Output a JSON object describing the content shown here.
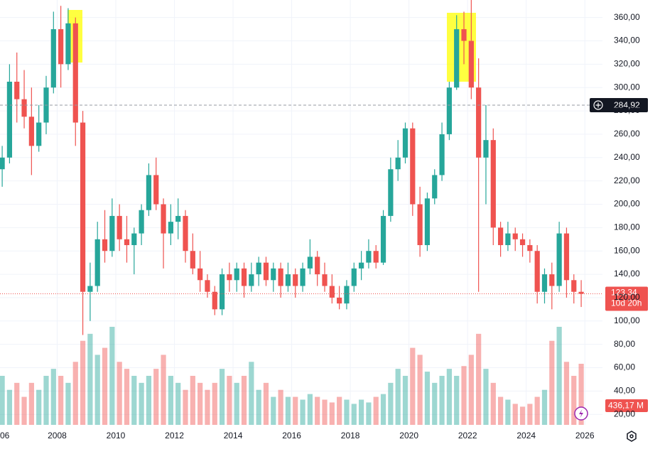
{
  "chart_data": {
    "type": "candlestick",
    "x": [
      2006.125,
      2006.375,
      2006.625,
      2006.875,
      2007.125,
      2007.375,
      2007.625,
      2007.875,
      2008.125,
      2008.375,
      2008.625,
      2008.875,
      2009.125,
      2009.375,
      2009.625,
      2009.875,
      2010.125,
      2010.375,
      2010.625,
      2010.875,
      2011.125,
      2011.375,
      2011.625,
      2011.875,
      2012.125,
      2012.375,
      2012.625,
      2012.875,
      2013.125,
      2013.375,
      2013.625,
      2013.875,
      2014.125,
      2014.375,
      2014.625,
      2014.875,
      2015.125,
      2015.375,
      2015.625,
      2015.875,
      2016.125,
      2016.375,
      2016.625,
      2016.875,
      2017.125,
      2017.375,
      2017.625,
      2017.875,
      2018.125,
      2018.375,
      2018.625,
      2018.875,
      2019.125,
      2019.375,
      2019.625,
      2019.875,
      2020.125,
      2020.375,
      2020.625,
      2020.875,
      2021.125,
      2021.375,
      2021.625,
      2021.875,
      2022.125,
      2022.375,
      2022.625,
      2022.875,
      2023.125,
      2023.375,
      2023.625,
      2023.875,
      2024.125,
      2024.375,
      2024.625,
      2024.875,
      2025.125,
      2025.375,
      2025.625,
      2025.875
    ],
    "open": [
      230,
      240,
      305,
      290,
      275,
      250,
      270,
      300,
      350,
      320,
      355,
      270,
      125,
      130,
      170,
      160,
      190,
      170,
      165,
      175,
      195,
      225,
      200,
      175,
      185,
      190,
      160,
      145,
      135,
      125,
      110,
      140,
      135,
      145,
      130,
      140,
      150,
      135,
      145,
      130,
      140,
      130,
      145,
      155,
      140,
      130,
      120,
      115,
      130,
      145,
      150,
      160,
      150,
      190,
      230,
      240,
      265,
      200,
      165,
      205,
      225,
      260,
      300,
      350,
      340,
      300,
      240,
      255,
      180,
      165,
      175,
      170,
      165,
      160,
      125,
      140,
      130,
      175,
      135,
      125
    ],
    "high": [
      250,
      320,
      330,
      315,
      300,
      285,
      310,
      365,
      370,
      368,
      360,
      280,
      150,
      185,
      195,
      205,
      200,
      190,
      180,
      200,
      235,
      240,
      205,
      200,
      205,
      195,
      175,
      160,
      140,
      130,
      145,
      150,
      150,
      150,
      150,
      155,
      155,
      150,
      150,
      150,
      145,
      150,
      170,
      160,
      150,
      140,
      130,
      135,
      150,
      160,
      170,
      165,
      195,
      240,
      255,
      270,
      270,
      215,
      210,
      230,
      270,
      305,
      362,
      365,
      375,
      325,
      285,
      265,
      185,
      185,
      180,
      175,
      170,
      165,
      145,
      150,
      185,
      180,
      140,
      135
    ],
    "low": [
      215,
      235,
      270,
      265,
      225,
      245,
      260,
      295,
      300,
      315,
      250,
      88,
      100,
      125,
      150,
      155,
      160,
      150,
      140,
      165,
      190,
      195,
      145,
      165,
      170,
      150,
      140,
      125,
      120,
      105,
      105,
      125,
      125,
      120,
      125,
      130,
      130,
      125,
      120,
      125,
      120,
      125,
      140,
      130,
      125,
      115,
      110,
      110,
      125,
      135,
      145,
      145,
      148,
      185,
      220,
      235,
      190,
      155,
      160,
      200,
      220,
      255,
      298,
      320,
      290,
      125,
      200,
      165,
      155,
      160,
      160,
      155,
      150,
      115,
      115,
      110,
      125,
      120,
      115,
      112
    ],
    "close": [
      240,
      305,
      290,
      275,
      250,
      270,
      300,
      350,
      320,
      355,
      270,
      125,
      130,
      170,
      160,
      190,
      170,
      165,
      175,
      195,
      225,
      200,
      175,
      185,
      190,
      160,
      145,
      135,
      125,
      110,
      140,
      135,
      145,
      130,
      140,
      150,
      135,
      145,
      130,
      140,
      130,
      145,
      155,
      140,
      130,
      120,
      115,
      130,
      145,
      150,
      160,
      150,
      190,
      230,
      240,
      265,
      200,
      165,
      205,
      225,
      260,
      300,
      350,
      340,
      300,
      240,
      255,
      180,
      165,
      175,
      170,
      165,
      160,
      125,
      140,
      130,
      175,
      135,
      125,
      123.34
    ],
    "volume": [
      350,
      250,
      300,
      200,
      300,
      250,
      350,
      400,
      350,
      300,
      450,
      600,
      650,
      500,
      550,
      700,
      450,
      400,
      350,
      300,
      350,
      400,
      500,
      350,
      300,
      250,
      350,
      300,
      250,
      300,
      400,
      350,
      300,
      350,
      450,
      250,
      300,
      200,
      250,
      200,
      200,
      180,
      220,
      200,
      180,
      160,
      200,
      180,
      150,
      180,
      160,
      200,
      220,
      300,
      400,
      350,
      550,
      500,
      380,
      300,
      350,
      400,
      350,
      420,
      500,
      650,
      400,
      300,
      200,
      180,
      150,
      130,
      150,
      200,
      250,
      600,
      700,
      450,
      350,
      436.17
    ],
    "up_color": "#26a69a",
    "down_color": "#ef5350",
    "xlim": [
      2006.05,
      2026.6
    ],
    "ylim": [
      11,
      375
    ],
    "y2lim": [
      0,
      3033
    ],
    "grid": true,
    "xticks": [
      {
        "value": 2006,
        "label": "06"
      },
      2008,
      2010,
      2012,
      2014,
      2016,
      2018,
      2020,
      2022,
      2024,
      2026
    ],
    "yticks": [
      {
        "value": 20,
        "label": "20,00"
      },
      {
        "value": 40,
        "label": "40,00"
      },
      {
        "value": 60,
        "label": "60,00"
      },
      {
        "value": 80,
        "label": "80,00"
      },
      {
        "value": 100,
        "label": "100,00"
      },
      {
        "value": 120,
        "label": "120,00"
      },
      {
        "value": 140,
        "label": "140,00"
      },
      {
        "value": 160,
        "label": "160,00"
      },
      {
        "value": 180,
        "label": "180,00"
      },
      {
        "value": 200,
        "label": "200,00"
      },
      {
        "value": 220,
        "label": "220,00"
      },
      {
        "value": 240,
        "label": "240,00"
      },
      {
        "value": 260,
        "label": "260,00"
      },
      {
        "value": 280,
        "label": "280,00"
      },
      {
        "value": 300,
        "label": "300,00"
      },
      {
        "value": 320,
        "label": "320,00"
      },
      {
        "value": 340,
        "label": "340,00"
      },
      {
        "value": 360,
        "label": "360,00"
      }
    ],
    "last_price": {
      "value": 123.34,
      "label": "123,34"
    },
    "countdown": "10d 20h",
    "crosshair": {
      "value": 284.92,
      "label": "284,92"
    },
    "volume_label": "436,17 M"
  }
}
